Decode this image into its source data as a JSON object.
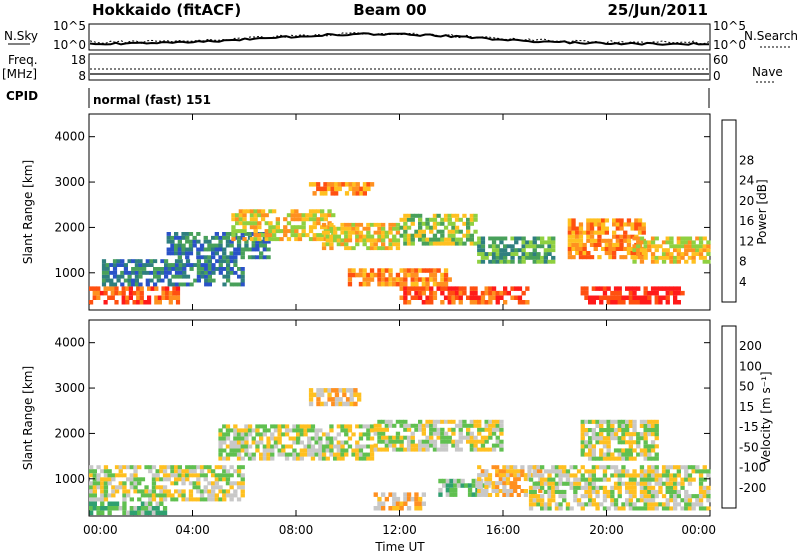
{
  "header": {
    "radar": "Hokkaido (fitACF)",
    "beam": "Beam 00",
    "date": "25/Jun/2011"
  },
  "side_labels": {
    "nsky": "N.Sky",
    "nsearch": "N.Search",
    "freq": "Freq.",
    "freq_unit": "[MHz]",
    "nave": "Nave",
    "cpid": "CPID"
  },
  "noise_panel": {
    "left_ticks": [
      "10^5",
      "10^0"
    ],
    "right_ticks": [
      "10^5",
      "10^0"
    ]
  },
  "freq_panel": {
    "left_ticks": [
      "18",
      "8"
    ],
    "right_ticks": [
      "60",
      "0"
    ]
  },
  "cpid_panel": {
    "text": "normal (fast) 151"
  },
  "chart_data": [
    {
      "type": "heatmap",
      "name_hint": "power",
      "ylabel": "Slant Range [km]",
      "xlabel": "",
      "ylim": [
        180,
        4500
      ],
      "y_ticks": [
        "1000",
        "2000",
        "3000",
        "4000"
      ],
      "colorbar": {
        "label": "Power [dB]",
        "ticks": [
          "4",
          "8",
          "12",
          "16",
          "20",
          "24",
          "28"
        ],
        "colors": [
          "#1a1aff",
          "#2a52c8",
          "#2f7f7f",
          "#48a05a",
          "#8fd040",
          "#ffc020",
          "#ff9020",
          "#ff5010",
          "#ff1a1a"
        ]
      },
      "bands": [
        {
          "t0": 0.0,
          "t1": 3.5,
          "r0": 300,
          "r1": 700,
          "level": 7
        },
        {
          "t0": 0.5,
          "t1": 6.0,
          "r0": 700,
          "r1": 1300,
          "level": 2
        },
        {
          "t0": 3.0,
          "t1": 7.0,
          "r0": 1300,
          "r1": 1900,
          "level": 2
        },
        {
          "t0": 5.5,
          "t1": 9.5,
          "r0": 1700,
          "r1": 2400,
          "level": 5
        },
        {
          "t0": 9.0,
          "t1": 12.0,
          "r0": 1500,
          "r1": 2100,
          "level": 5
        },
        {
          "t0": 8.5,
          "t1": 11.0,
          "r0": 2700,
          "r1": 3000,
          "level": 6
        },
        {
          "t0": 12.0,
          "t1": 15.0,
          "r0": 1600,
          "r1": 2300,
          "level": 4
        },
        {
          "t0": 10.0,
          "t1": 14.0,
          "r0": 700,
          "r1": 1100,
          "level": 6
        },
        {
          "t0": 12.0,
          "t1": 17.0,
          "r0": 300,
          "r1": 700,
          "level": 7
        },
        {
          "t0": 15.0,
          "t1": 18.0,
          "r0": 1200,
          "r1": 1800,
          "level": 3
        },
        {
          "t0": 18.5,
          "t1": 21.5,
          "r0": 1300,
          "r1": 2200,
          "level": 6
        },
        {
          "t0": 19.0,
          "t1": 23.0,
          "r0": 300,
          "r1": 700,
          "level": 8
        },
        {
          "t0": 21.0,
          "t1": 24.0,
          "r0": 1200,
          "r1": 1800,
          "level": 5
        }
      ]
    },
    {
      "type": "heatmap",
      "name_hint": "velocity",
      "ylabel": "Slant Range [km]",
      "xlabel": "Time UT",
      "x_ticks": [
        "00:00",
        "04:00",
        "08:00",
        "12:00",
        "16:00",
        "20:00",
        "00:00"
      ],
      "ylim": [
        180,
        4500
      ],
      "y_ticks": [
        "1000",
        "2000",
        "3000",
        "4000"
      ],
      "colorbar": {
        "label": "Velocity [m s⁻¹]",
        "ticks": [
          "200",
          "100",
          "50",
          "15",
          "-15",
          "-50",
          "-100",
          "-200"
        ],
        "colors": [
          "#2040c0",
          "#2a80a0",
          "#2fa070",
          "#60c050",
          "#c8c8c8",
          "#ffc020",
          "#ff9020",
          "#ff5010",
          "#ff1a1a"
        ]
      },
      "bands": [
        {
          "t0": 0.0,
          "t1": 6.0,
          "r0": 500,
          "r1": 1300,
          "level": 4
        },
        {
          "t0": 0.0,
          "t1": 3.0,
          "r0": 200,
          "r1": 500,
          "level": 3
        },
        {
          "t0": 5.0,
          "t1": 11.0,
          "r0": 1400,
          "r1": 2200,
          "level": 4
        },
        {
          "t0": 8.5,
          "t1": 10.5,
          "r0": 2600,
          "r1": 3000,
          "level": 5
        },
        {
          "t0": 11.0,
          "t1": 16.0,
          "r0": 1600,
          "r1": 2300,
          "level": 4
        },
        {
          "t0": 11.0,
          "t1": 13.0,
          "r0": 300,
          "r1": 700,
          "level": 5
        },
        {
          "t0": 13.5,
          "t1": 15.5,
          "r0": 600,
          "r1": 1000,
          "level": 3
        },
        {
          "t0": 15.0,
          "t1": 17.5,
          "r0": 600,
          "r1": 1300,
          "level": 5
        },
        {
          "t0": 17.0,
          "t1": 24.0,
          "r0": 300,
          "r1": 1300,
          "level": 4
        },
        {
          "t0": 19.0,
          "t1": 22.0,
          "r0": 1400,
          "r1": 2300,
          "level": 4
        }
      ]
    }
  ]
}
